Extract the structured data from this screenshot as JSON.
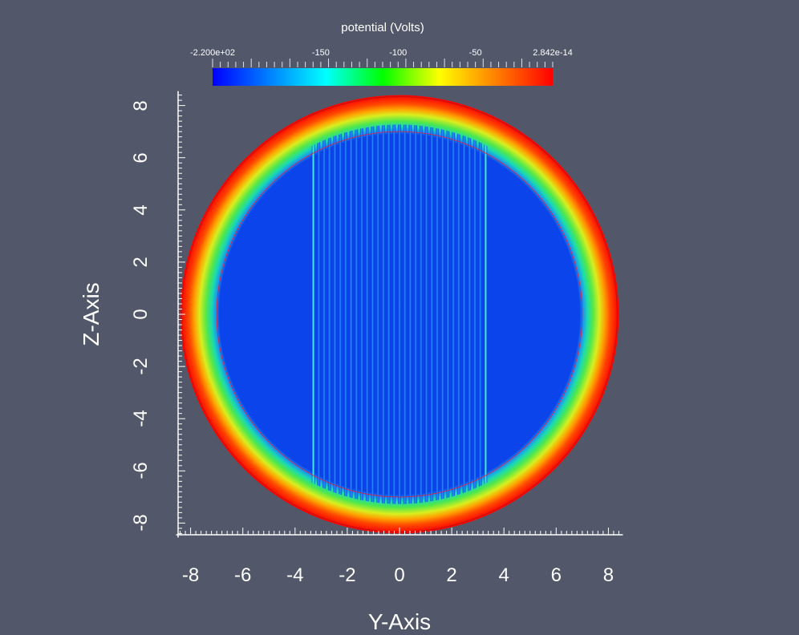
{
  "chart_data": {
    "type": "heatmap",
    "colorbar": {
      "title": "potential (Volts)",
      "range": [
        -220,
        2.842e-14
      ],
      "ticks": [
        {
          "value": -220,
          "label": "-2.200e+02"
        },
        {
          "value": -150,
          "label": "-150"
        },
        {
          "value": -100,
          "label": "-100"
        },
        {
          "value": -50,
          "label": "-50"
        },
        {
          "value": 2.842e-14,
          "label": "2.842e-14"
        }
      ],
      "colormap": [
        "#0000ff",
        "#0080ff",
        "#00ffff",
        "#00ff00",
        "#ffff00",
        "#ff8000",
        "#ff0000"
      ]
    },
    "xlabel": "Y-Axis",
    "ylabel": "Z-Axis",
    "xlim": [
      -8.4,
      8.4
    ],
    "ylim": [
      -8.4,
      8.4
    ],
    "xticks": [
      -8,
      -6,
      -4,
      -2,
      0,
      2,
      4,
      6,
      8
    ],
    "yticks": [
      -8,
      -6,
      -4,
      -2,
      0,
      2,
      4,
      6,
      8
    ],
    "xtick_labels": [
      "-8",
      "-6",
      "-4",
      "-2",
      "0",
      "2",
      "4",
      "6",
      "8"
    ],
    "ytick_labels": [
      "-8",
      "-6",
      "-4",
      "-2",
      "0",
      "2",
      "4",
      "6",
      "8"
    ],
    "field": {
      "outer_radius": 8.4,
      "plateau_radius": 6.9,
      "plateau_potential": -220,
      "boundary_potential": 0,
      "inner_circle_radius": 7.0,
      "wire_grid_y_range": [
        -3.3,
        3.3
      ],
      "wire_count": 33
    }
  }
}
